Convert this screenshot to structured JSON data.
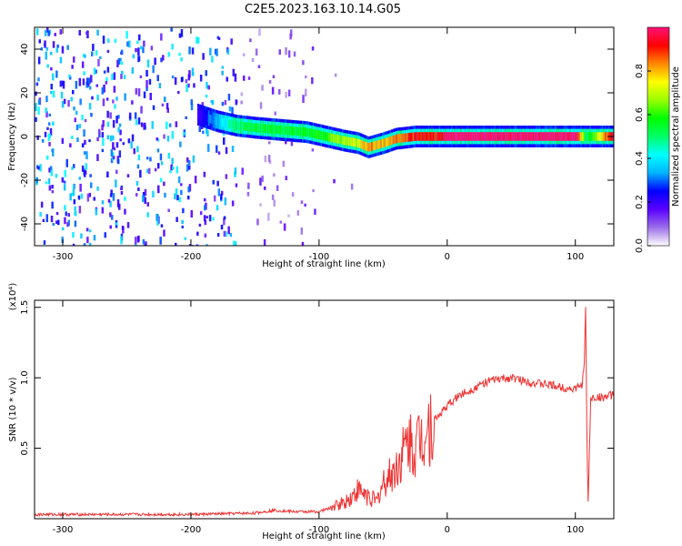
{
  "title": "C2E5.2023.163.10.14.G05",
  "chart_data": [
    {
      "type": "heatmap",
      "xlabel": "Height of straight line (km)",
      "ylabel": "Frequency (Hz)",
      "xlim": [
        -322,
        130
      ],
      "ylim": [
        -50,
        50
      ],
      "xticks": [
        -300,
        -200,
        -100,
        0,
        100
      ],
      "xtick_labels": [
        "-300",
        "-200",
        "-100",
        "0",
        "100"
      ],
      "yticks": [
        -40,
        -20,
        0,
        20,
        40
      ],
      "ytick_labels": [
        "-40",
        "-20",
        "0",
        "20",
        "40"
      ],
      "colorbar": {
        "label": "Normalized spectral amplitude",
        "range": [
          0,
          1
        ],
        "ticks": [
          0.0,
          0.2,
          0.4,
          0.6,
          0.8
        ],
        "tick_labels": [
          "0.0",
          "0.2",
          "0.4",
          "0.6",
          "0.8"
        ],
        "colormap": [
          "#ffffff",
          "#9b6ee8",
          "#5a00ff",
          "#0000ff",
          "#00b4ff",
          "#00ffff",
          "#00ff66",
          "#00ff00",
          "#99ff00",
          "#ffff00",
          "#ff8800",
          "#ff0000",
          "#ff1177"
        ]
      },
      "ridge": {
        "x": [
          -195,
          -180,
          -165,
          -150,
          -130,
          -110,
          -95,
          -80,
          -70,
          -62,
          -50,
          -40,
          -25,
          -10,
          0,
          50,
          100,
          108,
          130
        ],
        "y": [
          10,
          7,
          5,
          4,
          3,
          2,
          0,
          -2,
          -3,
          -5,
          -3,
          -1,
          0,
          0,
          0,
          0,
          0,
          0,
          0
        ],
        "amplitude": [
          0.2,
          0.35,
          0.5,
          0.55,
          0.55,
          0.55,
          0.6,
          0.7,
          0.7,
          0.85,
          0.8,
          0.85,
          0.9,
          0.9,
          1.0,
          1.0,
          1.0,
          0.5,
          1.0
        ]
      },
      "grid": false
    },
    {
      "type": "line",
      "xlabel": "Height of straight line (km)",
      "ylabel": "SNR (10 * v/v)",
      "y_multiplier": "(x10⁴)",
      "xlim": [
        -322,
        130
      ],
      "ylim": [
        0,
        1.55
      ],
      "xticks": [
        -300,
        -200,
        -100,
        0,
        100
      ],
      "xtick_labels": [
        "-300",
        "-200",
        "-100",
        "0",
        "100"
      ],
      "yticks": [
        0.5,
        1.0,
        1.5
      ],
      "ytick_labels": [
        "0.5",
        "1.0",
        "1.5"
      ],
      "color": "#ee3333",
      "series": [
        {
          "x": [
            -322,
            -300,
            -250,
            -200,
            -150,
            -135,
            -120,
            -100,
            -90,
            -80,
            -75,
            -70,
            -65,
            -55,
            -50,
            -40,
            -35,
            -30,
            -25,
            -20,
            -15,
            -10,
            -5,
            0,
            10,
            20,
            30,
            40,
            50,
            60,
            70,
            80,
            90,
            100,
            105,
            107,
            108,
            109,
            110,
            112,
            115,
            120,
            125,
            130
          ],
          "y": [
            0.03,
            0.03,
            0.03,
            0.03,
            0.04,
            0.06,
            0.05,
            0.05,
            0.08,
            0.12,
            0.15,
            0.2,
            0.18,
            0.12,
            0.25,
            0.35,
            0.45,
            0.55,
            0.5,
            0.6,
            0.65,
            0.7,
            0.75,
            0.8,
            0.88,
            0.92,
            0.97,
            0.99,
            1.0,
            0.98,
            0.96,
            0.95,
            0.93,
            0.92,
            0.95,
            1.1,
            1.5,
            0.6,
            0.1,
            0.85,
            0.86,
            0.86,
            0.87,
            0.88
          ]
        }
      ],
      "grid": false
    }
  ]
}
